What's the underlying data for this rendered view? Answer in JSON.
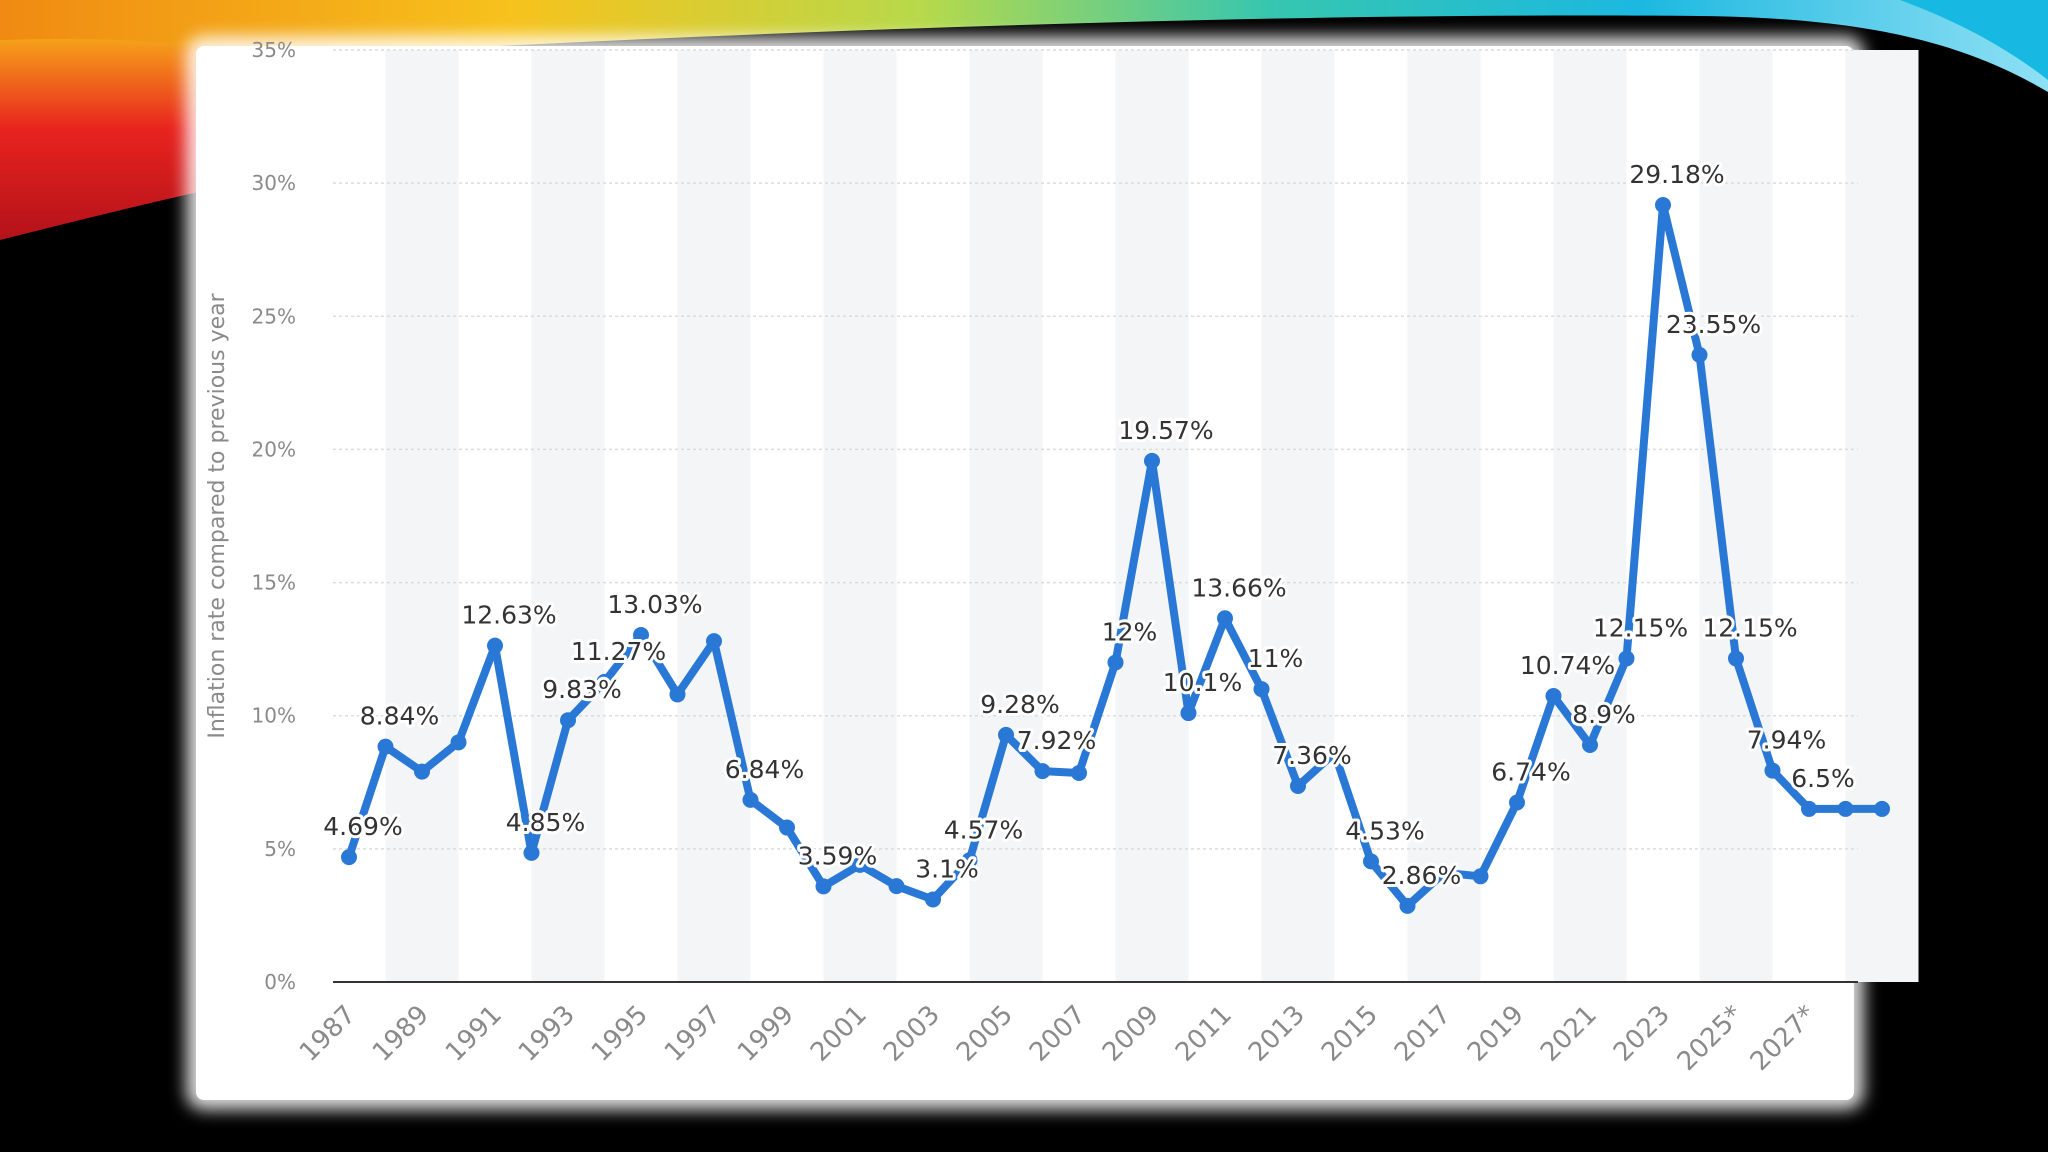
{
  "slide": {
    "background": "#000000",
    "accent_colors": [
      "#e8231e",
      "#f7a81b",
      "#f6d31c",
      "#7fd34e",
      "#19c3d8",
      "#3ab5e8"
    ]
  },
  "chart_data": {
    "type": "line",
    "title": "",
    "xlabel": "",
    "ylabel": "Inflation rate compared to previous year",
    "ylim": [
      0,
      35
    ],
    "y_ticks": [
      "0%",
      "5%",
      "10%",
      "15%",
      "20%",
      "25%",
      "30%",
      "35%"
    ],
    "grid": true,
    "line_color": "#2a78d6",
    "x": [
      "1987",
      "1988",
      "1989",
      "1990",
      "1991",
      "1992",
      "1993",
      "1994",
      "1995",
      "1996",
      "1997",
      "1998",
      "1999",
      "2000",
      "2001",
      "2002",
      "2003",
      "2004",
      "2005",
      "2006",
      "2007",
      "2008",
      "2009",
      "2010",
      "2011",
      "2012",
      "2013",
      "2014",
      "2015",
      "2016",
      "2017",
      "2018",
      "2019",
      "2020",
      "2021",
      "2022",
      "2023",
      "2024",
      "2025*",
      "2026*",
      "2027*",
      "2028*",
      "2029*"
    ],
    "x_tick_labels": [
      "1987",
      "1989",
      "1991",
      "1993",
      "1995",
      "1997",
      "1999",
      "2001",
      "2003",
      "2005",
      "2007",
      "2009",
      "2011",
      "2013",
      "2015",
      "2017",
      "2019",
      "2021",
      "2023",
      "2025*",
      "2027*"
    ],
    "series": [
      {
        "values": [
          4.69,
          8.84,
          7.9,
          9.0,
          12.63,
          4.85,
          9.83,
          11.27,
          13.03,
          10.8,
          12.8,
          6.84,
          5.8,
          3.59,
          4.4,
          3.6,
          3.1,
          4.57,
          9.28,
          7.92,
          7.85,
          12.0,
          19.57,
          10.1,
          13.66,
          11.0,
          7.36,
          8.6,
          4.53,
          2.86,
          4.1,
          3.97,
          6.74,
          10.74,
          8.9,
          12.15,
          29.18,
          23.55,
          12.15,
          7.94,
          6.5,
          6.5,
          6.5
        ]
      }
    ],
    "data_labels": [
      {
        "index": 0,
        "text": "4.69%"
      },
      {
        "index": 1,
        "text": "8.84%"
      },
      {
        "index": 4,
        "text": "12.63%"
      },
      {
        "index": 5,
        "text": "4.85%"
      },
      {
        "index": 6,
        "text": "9.83%"
      },
      {
        "index": 7,
        "text": "11.27%"
      },
      {
        "index": 8,
        "text": "13.03%"
      },
      {
        "index": 11,
        "text": "6.84%"
      },
      {
        "index": 13,
        "text": "3.59%"
      },
      {
        "index": 16,
        "text": "3.1%"
      },
      {
        "index": 17,
        "text": "4.57%"
      },
      {
        "index": 18,
        "text": "9.28%"
      },
      {
        "index": 19,
        "text": "7.92%"
      },
      {
        "index": 21,
        "text": "12%"
      },
      {
        "index": 22,
        "text": "19.57%"
      },
      {
        "index": 23,
        "text": "10.1%"
      },
      {
        "index": 24,
        "text": "13.66%"
      },
      {
        "index": 25,
        "text": "11%"
      },
      {
        "index": 26,
        "text": "7.36%"
      },
      {
        "index": 28,
        "text": "4.53%"
      },
      {
        "index": 29,
        "text": "2.86%"
      },
      {
        "index": 32,
        "text": "6.74%"
      },
      {
        "index": 33,
        "text": "10.74%"
      },
      {
        "index": 34,
        "text": "8.9%"
      },
      {
        "index": 35,
        "text": "12.15%"
      },
      {
        "index": 36,
        "text": "29.18%"
      },
      {
        "index": 37,
        "text": "23.55%"
      },
      {
        "index": 38,
        "text": "12.15%"
      },
      {
        "index": 39,
        "text": "7.94%"
      },
      {
        "index": 40,
        "text": "6.5%"
      }
    ]
  }
}
